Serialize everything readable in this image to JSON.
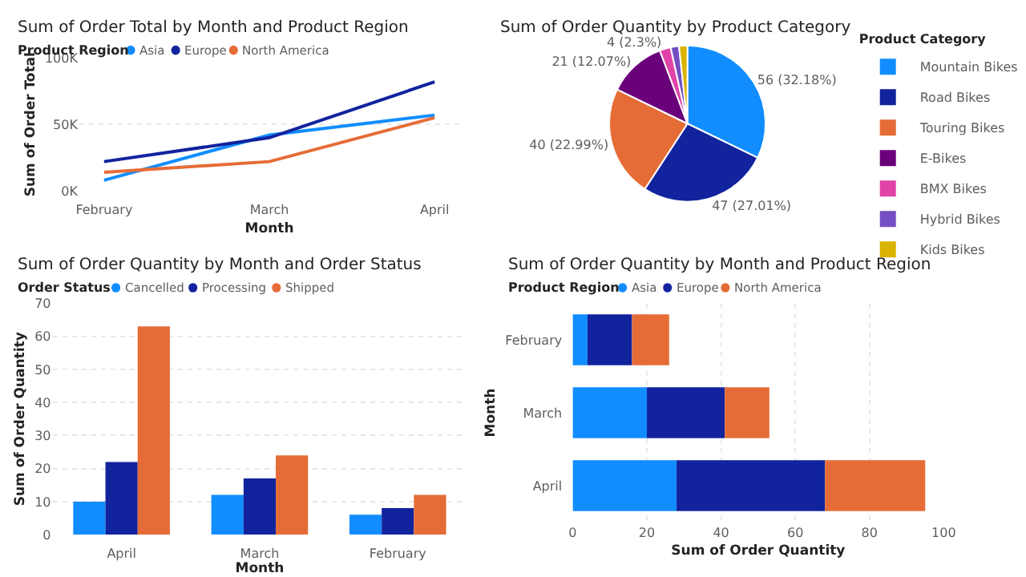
{
  "chart_data": [
    {
      "type": "line",
      "title": "Sum of Order Total by Month and Product Region",
      "xlabel": "Month",
      "ylabel": "Sum of Order Total",
      "legend_title": "Product Region",
      "legend": "top left",
      "grid": "y",
      "categories": [
        "February",
        "March",
        "April"
      ],
      "ylim": [
        0,
        100000
      ],
      "yticks": [
        {
          "value": 0,
          "label": "0K"
        },
        {
          "value": 50000,
          "label": "50K"
        },
        {
          "value": 100000,
          "label": "100K"
        }
      ],
      "series": [
        {
          "name": "Asia",
          "color": "#118dff",
          "values": [
            8000,
            42000,
            57000
          ]
        },
        {
          "name": "Europe",
          "color": "#12239e",
          "values": [
            22000,
            40000,
            82000
          ]
        },
        {
          "name": "North America",
          "color": "#e66c37",
          "values": [
            14000,
            22000,
            55000
          ]
        }
      ]
    },
    {
      "type": "pie",
      "title": "Sum of Order Quantity by Product Category",
      "legend_title": "Product Category",
      "legend": "right",
      "categories": [
        "Mountain Bikes",
        "Road Bikes",
        "Touring Bikes",
        "E-Bikes",
        "BMX Bikes",
        "Hybrid Bikes",
        "Kids Bikes"
      ],
      "values": [
        56,
        47,
        40,
        21,
        4,
        3,
        3
      ],
      "value_labels": [
        "56 (32.18%)",
        "47 (27.01%)",
        "40 (22.99%)",
        "21 (12.07%)",
        "4 (2.3%)",
        null,
        null
      ],
      "colors": [
        "#118dff",
        "#12239e",
        "#e66c37",
        "#6b007b",
        "#e044a7",
        "#744ec2",
        "#d9b300"
      ]
    },
    {
      "type": "bar",
      "title": "Sum of Order Quantity by Month and Order Status",
      "xlabel": "Month",
      "ylabel": "Sum of Order Quantity",
      "legend_title": "Order Status",
      "legend": "top left",
      "grid": "y",
      "categories": [
        "April",
        "March",
        "February"
      ],
      "ylim": [
        0,
        70
      ],
      "yticks": [
        0,
        10,
        20,
        30,
        40,
        50,
        60,
        70
      ],
      "series": [
        {
          "name": "Cancelled",
          "color": "#118dff",
          "values": [
            10,
            12,
            6
          ]
        },
        {
          "name": "Processing",
          "color": "#12239e",
          "values": [
            22,
            17,
            8
          ]
        },
        {
          "name": "Shipped",
          "color": "#e66c37",
          "values": [
            63,
            24,
            12
          ]
        }
      ]
    },
    {
      "type": "bar",
      "orientation": "horizontal",
      "stacked": true,
      "title": "Sum of Order Quantity by Month and Product Region",
      "xlabel": "Sum of Order Quantity",
      "ylabel": "Month",
      "legend_title": "Product Region",
      "legend": "top left",
      "grid": "x",
      "categories": [
        "February",
        "March",
        "April"
      ],
      "xlim": [
        0,
        100
      ],
      "xticks": [
        0,
        20,
        40,
        60,
        80,
        100
      ],
      "series": [
        {
          "name": "Asia",
          "color": "#118dff",
          "values": [
            4,
            20,
            28
          ]
        },
        {
          "name": "Europe",
          "color": "#12239e",
          "values": [
            12,
            21,
            40
          ]
        },
        {
          "name": "North America",
          "color": "#e66c37",
          "values": [
            10,
            12,
            27
          ]
        }
      ]
    }
  ]
}
